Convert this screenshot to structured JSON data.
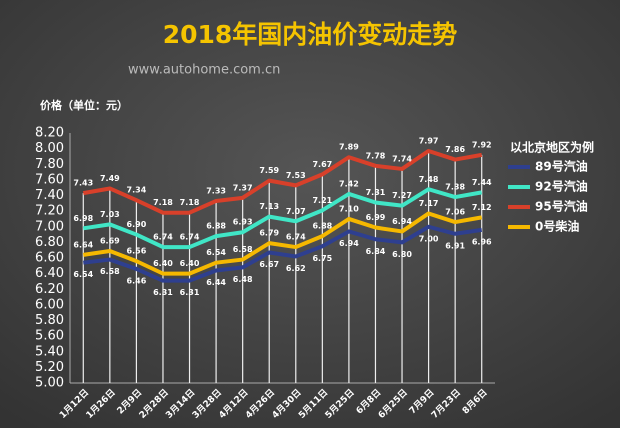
{
  "chart_data": {
    "type": "line",
    "title": "2018年国内油价变动走势",
    "subtitle": "www.autohome.com.cn",
    "y_label": "价格（单位：元）",
    "legend_title": "以北京地区为例",
    "categories": [
      "1月12日",
      "1月26日",
      "2月9日",
      "2月28日",
      "3月14日",
      "3月28日",
      "4月12日",
      "4月26日",
      "4月30日",
      "5月11日",
      "5月25日",
      "6月8日",
      "6月25日",
      "7月9日",
      "7月23日",
      "8月6日"
    ],
    "series": [
      {
        "name": "89号汽油",
        "color": "#2e3f8f",
        "values": [
          6.54,
          6.58,
          6.46,
          6.31,
          6.31,
          6.44,
          6.48,
          6.67,
          6.62,
          6.75,
          6.94,
          6.84,
          6.8,
          7.0,
          6.91,
          6.96
        ],
        "value_labels": [
          "6.54",
          "6.58",
          "6.46",
          "6.31",
          "6.31",
          "6.44",
          "6.48",
          "6.67",
          "6.62",
          "6.75",
          "6.94",
          "6.84",
          "6.80",
          "7.00",
          "6.91",
          "6.96"
        ]
      },
      {
        "name": "92号汽油",
        "color": "#40e6c6",
        "values": [
          6.98,
          7.03,
          6.9,
          6.74,
          6.74,
          6.88,
          6.93,
          7.13,
          7.07,
          7.21,
          7.42,
          7.31,
          7.27,
          7.48,
          7.38,
          7.44
        ],
        "value_labels": [
          "6.98",
          "7.03",
          "6.90",
          "6.74",
          "6.74",
          "6.88",
          "6.93",
          "7.13",
          "7.07",
          "7.21",
          "7.42",
          "7.31",
          "7.27",
          "7.48",
          "7.38",
          "7.44"
        ]
      },
      {
        "name": "95号汽油",
        "color": "#d8402a",
        "values": [
          7.43,
          7.49,
          7.34,
          7.18,
          7.18,
          7.33,
          7.37,
          7.59,
          7.53,
          7.67,
          7.89,
          7.78,
          7.74,
          7.97,
          7.86,
          7.92
        ],
        "value_labels": [
          "7.43",
          "7.49",
          "7.34",
          "7.18",
          "7.18",
          "7.33",
          "7.37",
          "7.59",
          "7.53",
          "7.67",
          "7.89",
          "7.78",
          "7.74",
          "7.97",
          "7.86",
          "7.92"
        ]
      },
      {
        "name": "0号柴油",
        "color": "#f5b800",
        "values": [
          6.64,
          6.69,
          6.56,
          6.4,
          6.4,
          6.54,
          6.58,
          6.79,
          6.74,
          6.88,
          7.1,
          6.99,
          6.94,
          7.17,
          7.06,
          7.12
        ],
        "value_labels": [
          "6.64",
          "6.69",
          "6.56",
          "6.40",
          "6.40",
          "6.54",
          "6.58",
          "6.79",
          "6.74",
          "6.88",
          "7.10",
          "6.99",
          "6.94",
          "7.17",
          "7.06",
          "7.12"
        ]
      }
    ],
    "ylim": [
      5.0,
      8.2
    ],
    "yticks": [
      {
        "value": 5.0,
        "label": "5.00"
      },
      {
        "value": 5.2,
        "label": "5.20"
      },
      {
        "value": 5.4,
        "label": "5.40"
      },
      {
        "value": 5.6,
        "label": "5.60"
      },
      {
        "value": 5.8,
        "label": "5.80"
      },
      {
        "value": 6.0,
        "label": "6.00"
      },
      {
        "value": 6.2,
        "label": "6.20"
      },
      {
        "value": 6.4,
        "label": "6.40"
      },
      {
        "value": 6.6,
        "label": "6.60"
      },
      {
        "value": 6.8,
        "label": "6.80"
      },
      {
        "value": 7.0,
        "label": "7.00"
      },
      {
        "value": 7.2,
        "label": "7.20"
      },
      {
        "value": 7.4,
        "label": "7.40"
      },
      {
        "value": 7.6,
        "label": "7.60"
      },
      {
        "value": 7.8,
        "label": "7.80"
      },
      {
        "value": 8.0,
        "label": "8.00"
      },
      {
        "value": 8.2,
        "label": "8.20"
      }
    ]
  }
}
